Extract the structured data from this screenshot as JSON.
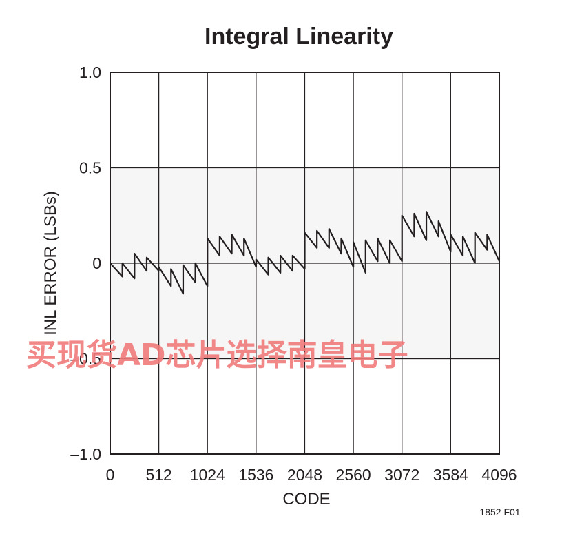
{
  "chart_data": {
    "type": "line",
    "title": "Integral Linearity",
    "xlabel": "CODE",
    "ylabel": "INL ERROR (LSBs)",
    "xlim": [
      0,
      4096
    ],
    "ylim": [
      -1.0,
      1.0
    ],
    "x_ticks": [
      0,
      512,
      1024,
      1536,
      2048,
      2560,
      3072,
      3584,
      4096
    ],
    "x_tick_labels": [
      "0",
      "512",
      "1024",
      "1536",
      "2048",
      "2560",
      "3072",
      "3584",
      "4096"
    ],
    "y_ticks": [
      1.0,
      0.5,
      0,
      -0.5,
      -1.0
    ],
    "y_tick_labels": [
      "1.0",
      "0.5",
      "0",
      "–0.5",
      "–1.0"
    ],
    "grid": true,
    "series": [
      {
        "color": "#231f20",
        "x": [
          0,
          128,
          128,
          256,
          256,
          384,
          384,
          512,
          512,
          640,
          640,
          768,
          768,
          896,
          896,
          1024,
          1024,
          1152,
          1152,
          1280,
          1280,
          1408,
          1408,
          1536,
          1536,
          1664,
          1664,
          1792,
          1792,
          1920,
          1920,
          2048,
          2048,
          2176,
          2176,
          2304,
          2304,
          2432,
          2432,
          2560,
          2560,
          2688,
          2688,
          2816,
          2816,
          2944,
          2944,
          3072,
          3072,
          3200,
          3200,
          3328,
          3328,
          3456,
          3456,
          3584,
          3584,
          3712,
          3712,
          3840,
          3840,
          3968,
          3968,
          4096
        ],
        "y": [
          0.0,
          -0.07,
          0.0,
          -0.08,
          0.05,
          -0.04,
          0.03,
          -0.04,
          -0.02,
          -0.12,
          -0.03,
          -0.16,
          -0.01,
          -0.1,
          0.0,
          -0.12,
          0.13,
          0.04,
          0.14,
          0.05,
          0.15,
          0.04,
          0.13,
          -0.02,
          0.02,
          -0.06,
          0.03,
          -0.05,
          0.04,
          -0.04,
          0.04,
          -0.03,
          0.16,
          0.08,
          0.17,
          0.08,
          0.18,
          0.05,
          0.13,
          -0.02,
          0.11,
          -0.05,
          0.12,
          0.01,
          0.13,
          0.0,
          0.12,
          0.01,
          0.25,
          0.14,
          0.26,
          0.12,
          0.27,
          0.14,
          0.22,
          0.06,
          0.15,
          0.04,
          0.14,
          0.0,
          0.16,
          0.07,
          0.15,
          0.01
        ]
      }
    ]
  },
  "watermark_text": "买现货AD芯片选择南皇电子",
  "figure_id": "1852 F01"
}
